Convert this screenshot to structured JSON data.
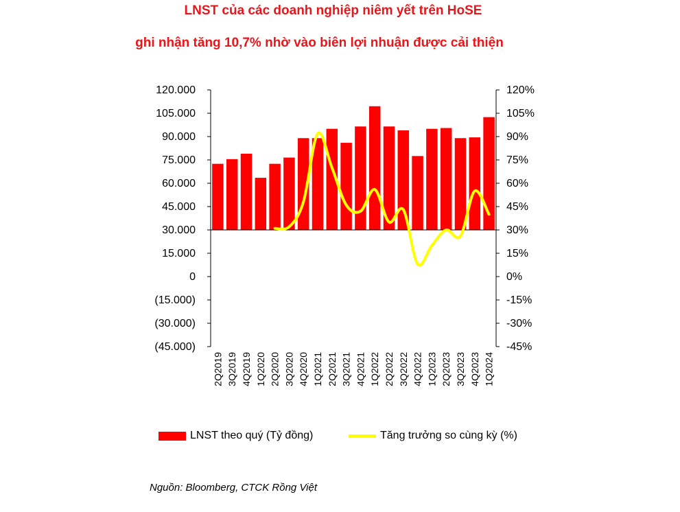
{
  "title": "LNST của các doanh nghiệp niêm yết trên HoSE",
  "subtitle": "ghi nhận tăng 10,7% nhờ vào biên lợi nhuận được cải thiện",
  "source": "Nguồn: Bloomberg, CTCK Rồng Việt",
  "colors": {
    "bars": "#ff0000",
    "line": "#ffff00",
    "title": "#e8161a"
  },
  "chart_data": {
    "type": "bar",
    "categories": [
      "2Q2019",
      "3Q2019",
      "4Q2019",
      "1Q2020",
      "2Q2020",
      "3Q2020",
      "4Q2020",
      "1Q2021",
      "2Q2021",
      "3Q2021",
      "4Q2021",
      "1Q2022",
      "2Q2022",
      "3Q2022",
      "4Q2022",
      "1Q2023",
      "2Q2023",
      "3Q2023",
      "4Q2023",
      "1Q2024"
    ],
    "series": [
      {
        "name": "LNST theo quý (Tỷ đồng)",
        "type": "bar",
        "axis": "left",
        "values": [
          72500,
          75500,
          79000,
          63500,
          72500,
          76500,
          89000,
          89000,
          95000,
          86000,
          96500,
          109500,
          96500,
          94000,
          77500,
          95000,
          95500,
          89000,
          89500,
          102500
        ]
      },
      {
        "name": "Tăng trưởng so cùng kỳ (%)",
        "type": "line",
        "axis": "right",
        "x": [
          "2Q2020",
          "3Q2020",
          "4Q2020",
          "1Q2021",
          "2Q2021",
          "3Q2021",
          "4Q2021",
          "1Q2022",
          "2Q2022",
          "3Q2022",
          "4Q2022",
          "1Q2023",
          "2Q2023",
          "3Q2023",
          "4Q2023",
          "1Q2024"
        ],
        "values": [
          31,
          32,
          48,
          92,
          70,
          46,
          42,
          56,
          35,
          43,
          8,
          20,
          30,
          26,
          55,
          40
        ]
      }
    ],
    "y_left": {
      "min": -45000,
      "max": 120000,
      "ticks": [
        "120.000",
        "105.000",
        "90.000",
        "75.000",
        "60.000",
        "45.000",
        "30.000",
        "15.000",
        "0",
        "(15.000)",
        "(30.000)",
        "(45.000)"
      ]
    },
    "y_right": {
      "min": -45,
      "max": 120,
      "ticks": [
        "120%",
        "105%",
        "90%",
        "75%",
        "60%",
        "45%",
        "30%",
        "15%",
        "0%",
        "-15%",
        "-30%",
        "-45%"
      ]
    },
    "axis_crossing": 30000,
    "grid": false,
    "legend_position": "bottom"
  }
}
